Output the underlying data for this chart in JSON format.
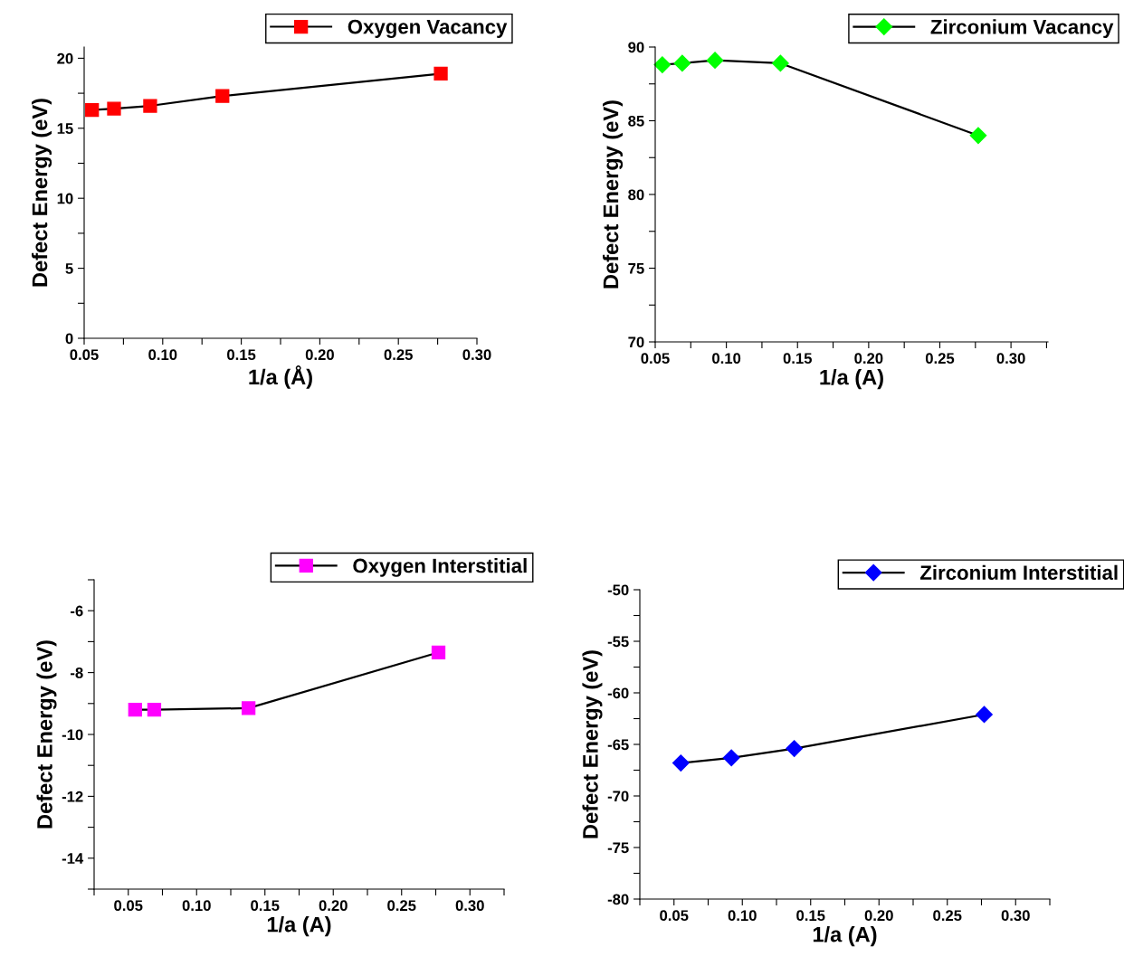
{
  "chart_data": [
    {
      "type": "line",
      "xlabel": "1/a (Å)",
      "ylabel": "Defect Energy (eV)",
      "legend": "top right",
      "marker": "square",
      "line_style": "solid",
      "grid": false,
      "series": [
        {
          "name": "Oxygen Vacancy",
          "color": "#ff0000",
          "x": [
            0.055,
            0.069,
            0.092,
            0.138,
            0.277
          ],
          "values": [
            16.3,
            16.4,
            16.6,
            17.3,
            18.9
          ]
        }
      ],
      "xlim": [
        0.05,
        0.3
      ],
      "ylim": [
        0,
        20.8
      ],
      "xticks": [
        {
          "value": 0.05,
          "label": "0.05"
        },
        {
          "value": 0.075,
          "label": null
        },
        {
          "value": 0.1,
          "label": "0.10"
        },
        {
          "value": 0.125,
          "label": null
        },
        {
          "value": 0.15,
          "label": "0.15"
        },
        {
          "value": 0.175,
          "label": null
        },
        {
          "value": 0.2,
          "label": "0.20"
        },
        {
          "value": 0.225,
          "label": null
        },
        {
          "value": 0.25,
          "label": "0.25"
        },
        {
          "value": 0.275,
          "label": null
        },
        {
          "value": 0.3,
          "label": "0.30"
        }
      ],
      "yticks": [
        0,
        {
          "value": 2.5,
          "label": null
        },
        5,
        {
          "value": 7.5,
          "label": null
        },
        10,
        {
          "value": 12.5,
          "label": null
        },
        15,
        {
          "value": 17.5,
          "label": null
        },
        20
      ]
    },
    {
      "type": "line",
      "xlabel": "1/a (A)",
      "ylabel": "Defect Energy (eV)",
      "legend": "top right",
      "marker": "diamond",
      "line_style": "solid",
      "grid": false,
      "series": [
        {
          "name": "Zirconium Vacancy",
          "color": "#00ff00",
          "x": [
            0.055,
            0.069,
            0.092,
            0.138,
            0.277
          ],
          "values": [
            88.8,
            88.9,
            89.1,
            88.9,
            84.0
          ]
        }
      ],
      "xlim": [
        0.05,
        0.326
      ],
      "ylim": [
        70,
        90
      ],
      "xticks": [
        {
          "value": 0.05,
          "label": "0.05"
        },
        {
          "value": 0.075,
          "label": null
        },
        {
          "value": 0.1,
          "label": "0.10"
        },
        {
          "value": 0.125,
          "label": null
        },
        {
          "value": 0.15,
          "label": "0.15"
        },
        {
          "value": 0.175,
          "label": null
        },
        {
          "value": 0.2,
          "label": "0.20"
        },
        {
          "value": 0.225,
          "label": null
        },
        {
          "value": 0.25,
          "label": "0.25"
        },
        {
          "value": 0.275,
          "label": null
        },
        {
          "value": 0.3,
          "label": "0.30"
        },
        {
          "value": 0.325,
          "label": null
        }
      ],
      "yticks": [
        70,
        {
          "value": 72.5,
          "label": null
        },
        75,
        {
          "value": 77.5,
          "label": null
        },
        80,
        {
          "value": 82.5,
          "label": null
        },
        85,
        {
          "value": 87.5,
          "label": null
        },
        90
      ]
    },
    {
      "type": "line",
      "xlabel": "1/a (A)",
      "ylabel": "Defect Energy (eV)",
      "legend": "top right",
      "marker": "square",
      "line_style": "solid",
      "grid": false,
      "series": [
        {
          "name": "Oxygen Interstitial",
          "color": "#ff00ff",
          "x": [
            0.055,
            0.069,
            0.138,
            0.277
          ],
          "values": [
            -9.2,
            -9.2,
            -9.15,
            -7.35
          ]
        }
      ],
      "xlim": [
        0.025,
        0.325
      ],
      "ylim": [
        -15,
        -5
      ],
      "xticks": [
        {
          "value": 0.025,
          "label": null
        },
        {
          "value": 0.05,
          "label": "0.05"
        },
        {
          "value": 0.075,
          "label": null
        },
        {
          "value": 0.1,
          "label": "0.10"
        },
        {
          "value": 0.125,
          "label": null
        },
        {
          "value": 0.15,
          "label": "0.15"
        },
        {
          "value": 0.175,
          "label": null
        },
        {
          "value": 0.2,
          "label": "0.20"
        },
        {
          "value": 0.225,
          "label": null
        },
        {
          "value": 0.25,
          "label": "0.25"
        },
        {
          "value": 0.275,
          "label": null
        },
        {
          "value": 0.3,
          "label": "0.30"
        },
        {
          "value": 0.325,
          "label": null
        }
      ],
      "yticks": [
        {
          "value": -15,
          "label": null
        },
        -14,
        {
          "value": -13,
          "label": null
        },
        -12,
        {
          "value": -11,
          "label": null
        },
        -10,
        {
          "value": -9,
          "label": null
        },
        -8,
        {
          "value": -7,
          "label": null
        },
        -6,
        {
          "value": -5,
          "label": null
        }
      ]
    },
    {
      "type": "line",
      "xlabel": "1/a (A)",
      "ylabel": "Defect Energy (eV)",
      "legend": "top right",
      "marker": "diamond",
      "line_style": "solid",
      "grid": false,
      "series": [
        {
          "name": "Zirconium Interstitial",
          "color": "#0000ff",
          "x": [
            0.055,
            0.092,
            0.138,
            0.277
          ],
          "values": [
            -66.8,
            -66.3,
            -65.4,
            -62.1
          ]
        }
      ],
      "xlim": [
        0.025,
        0.325
      ],
      "ylim": [
        -80,
        -50
      ],
      "xticks": [
        {
          "value": 0.025,
          "label": null
        },
        {
          "value": 0.05,
          "label": "0.05"
        },
        {
          "value": 0.075,
          "label": null
        },
        {
          "value": 0.1,
          "label": "0.10"
        },
        {
          "value": 0.125,
          "label": null
        },
        {
          "value": 0.15,
          "label": "0.15"
        },
        {
          "value": 0.175,
          "label": null
        },
        {
          "value": 0.2,
          "label": "0.20"
        },
        {
          "value": 0.225,
          "label": null
        },
        {
          "value": 0.25,
          "label": "0.25"
        },
        {
          "value": 0.275,
          "label": null
        },
        {
          "value": 0.3,
          "label": "0.30"
        },
        {
          "value": 0.325,
          "label": null
        }
      ],
      "yticks": [
        -80,
        {
          "value": -77.5,
          "label": null
        },
        -75,
        {
          "value": -72.5,
          "label": null
        },
        -70,
        {
          "value": -67.5,
          "label": null
        },
        -65,
        {
          "value": -62.5,
          "label": null
        },
        -60,
        {
          "value": -57.5,
          "label": null
        },
        -55,
        {
          "value": -52.5,
          "label": null
        },
        -50
      ]
    }
  ]
}
